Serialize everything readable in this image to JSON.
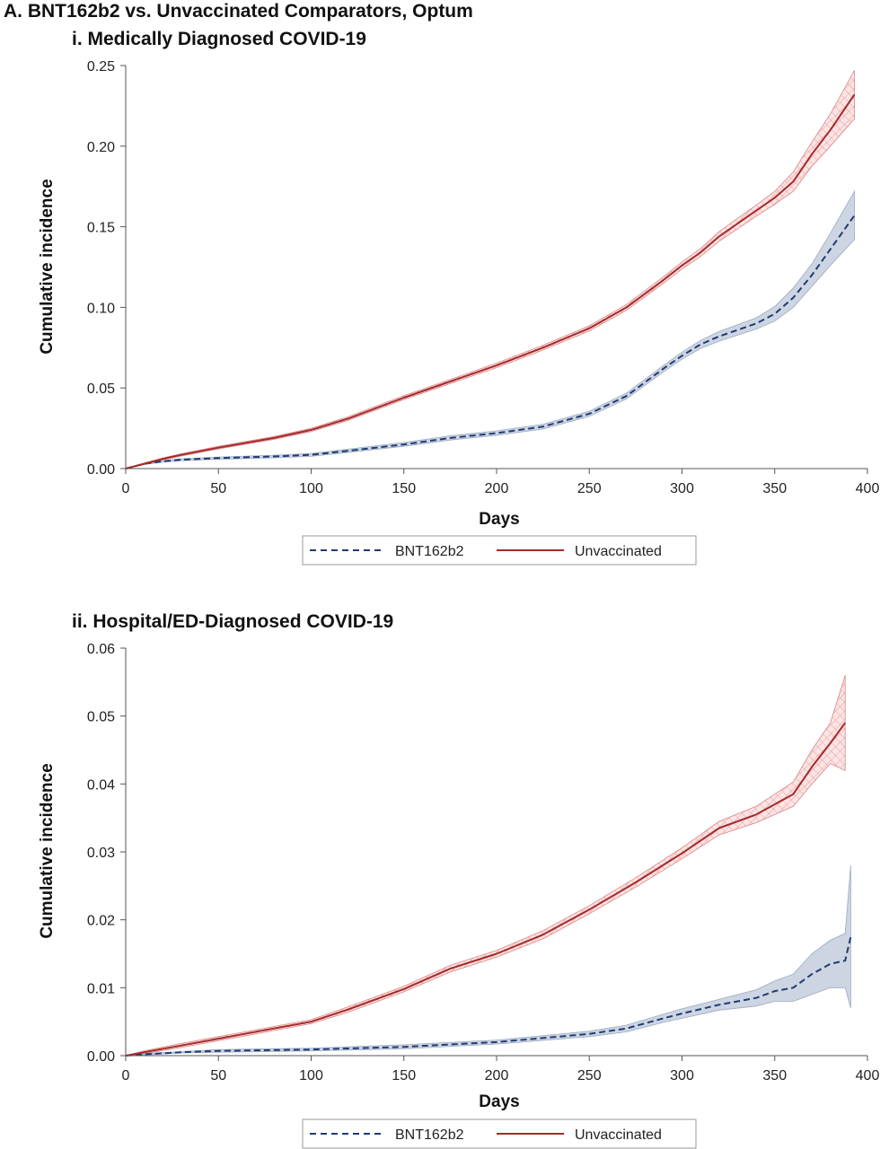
{
  "figure_title": "A. BNT162b2 vs. Unvaccinated Comparators, Optum",
  "colors": {
    "bnt": "#1f3b73",
    "bnt_band": "#c5cedd",
    "bnt_band_edge": "#8a9bb8",
    "unvax": "#a52a2a",
    "unvax_band": "#f3c9c9",
    "unvax_band_edge": "#d98080"
  },
  "chart_data": [
    {
      "type": "line",
      "title": "i. Medically Diagnosed COVID-19",
      "xlabel": "Days",
      "ylabel": "Cumulative incidence",
      "xlim": [
        0,
        400
      ],
      "ylim": [
        0,
        0.25
      ],
      "xticks": [
        "0",
        "50",
        "100",
        "150",
        "200",
        "250",
        "300",
        "350",
        "400"
      ],
      "yticks": [
        "0.00",
        "0.05",
        "0.10",
        "0.15",
        "0.20",
        "0.25"
      ],
      "grid": false,
      "legend_position": "bottom",
      "series": [
        {
          "name": "BNT162b2",
          "style": "dashed",
          "x": [
            0,
            10,
            20,
            30,
            50,
            80,
            100,
            120,
            150,
            175,
            200,
            225,
            250,
            270,
            290,
            300,
            310,
            320,
            340,
            350,
            360,
            370,
            380,
            393
          ],
          "y": [
            0,
            0.003,
            0.0045,
            0.0055,
            0.0065,
            0.0075,
            0.0085,
            0.011,
            0.015,
            0.019,
            0.022,
            0.026,
            0.034,
            0.045,
            0.062,
            0.07,
            0.077,
            0.082,
            0.09,
            0.096,
            0.106,
            0.12,
            0.136,
            0.157
          ],
          "ci_half": [
            0,
            0.0004,
            0.0005,
            0.0006,
            0.0007,
            0.0008,
            0.0009,
            0.001,
            0.0012,
            0.0013,
            0.0014,
            0.0015,
            0.0016,
            0.0018,
            0.002,
            0.0022,
            0.0025,
            0.003,
            0.0035,
            0.0045,
            0.006,
            0.007,
            0.01,
            0.015
          ]
        },
        {
          "name": "Unvaccinated",
          "style": "solid",
          "x": [
            0,
            10,
            20,
            30,
            50,
            80,
            100,
            120,
            150,
            175,
            200,
            225,
            250,
            270,
            290,
            300,
            310,
            320,
            340,
            350,
            360,
            370,
            380,
            393
          ],
          "y": [
            0,
            0.003,
            0.006,
            0.0085,
            0.013,
            0.019,
            0.024,
            0.031,
            0.044,
            0.054,
            0.064,
            0.075,
            0.087,
            0.1,
            0.117,
            0.126,
            0.134,
            0.144,
            0.16,
            0.168,
            0.178,
            0.195,
            0.21,
            0.232
          ],
          "ci_half": [
            0,
            0.0005,
            0.0006,
            0.0007,
            0.0008,
            0.0009,
            0.001,
            0.0011,
            0.0012,
            0.0013,
            0.0014,
            0.0015,
            0.0016,
            0.0018,
            0.002,
            0.0022,
            0.0025,
            0.003,
            0.0035,
            0.004,
            0.006,
            0.0075,
            0.01,
            0.015
          ]
        }
      ]
    },
    {
      "type": "line",
      "title": "ii. Hospital/ED-Diagnosed COVID-19",
      "xlabel": "Days",
      "ylabel": "Cumulative incidence",
      "xlim": [
        0,
        400
      ],
      "ylim": [
        0,
        0.06
      ],
      "xticks": [
        "0",
        "50",
        "100",
        "150",
        "200",
        "250",
        "300",
        "350",
        "400"
      ],
      "yticks": [
        "0.00",
        "0.01",
        "0.02",
        "0.03",
        "0.04",
        "0.05",
        "0.06"
      ],
      "grid": false,
      "legend_position": "bottom",
      "series": [
        {
          "name": "BNT162b2",
          "style": "dashed",
          "x": [
            0,
            10,
            30,
            50,
            100,
            150,
            200,
            250,
            270,
            290,
            300,
            320,
            340,
            350,
            360,
            370,
            380,
            388,
            391
          ],
          "y": [
            0,
            0.0002,
            0.0005,
            0.0007,
            0.0009,
            0.0013,
            0.002,
            0.0032,
            0.004,
            0.0055,
            0.0062,
            0.0075,
            0.0085,
            0.0095,
            0.01,
            0.012,
            0.0135,
            0.014,
            0.0175
          ],
          "ci_half": [
            0,
            0.0001,
            0.0001,
            0.0002,
            0.0002,
            0.0003,
            0.0003,
            0.0004,
            0.0005,
            0.0006,
            0.0007,
            0.0008,
            0.0012,
            0.0015,
            0.002,
            0.003,
            0.0035,
            0.004,
            0.0105
          ]
        },
        {
          "name": "Unvaccinated",
          "style": "solid",
          "x": [
            0,
            10,
            30,
            50,
            80,
            100,
            120,
            150,
            175,
            200,
            225,
            250,
            275,
            300,
            320,
            340,
            350,
            360,
            370,
            380,
            388
          ],
          "y": [
            0,
            0.0005,
            0.0015,
            0.0025,
            0.004,
            0.005,
            0.0068,
            0.0098,
            0.0128,
            0.015,
            0.0178,
            0.0215,
            0.0255,
            0.0298,
            0.0335,
            0.0355,
            0.037,
            0.0385,
            0.0425,
            0.046,
            0.049
          ],
          "ci_half": [
            0,
            0.0002,
            0.0003,
            0.0003,
            0.0003,
            0.0003,
            0.0004,
            0.0004,
            0.0005,
            0.0005,
            0.0006,
            0.0006,
            0.0007,
            0.0008,
            0.001,
            0.0012,
            0.0015,
            0.0018,
            0.0025,
            0.003,
            0.007
          ]
        }
      ]
    }
  ]
}
